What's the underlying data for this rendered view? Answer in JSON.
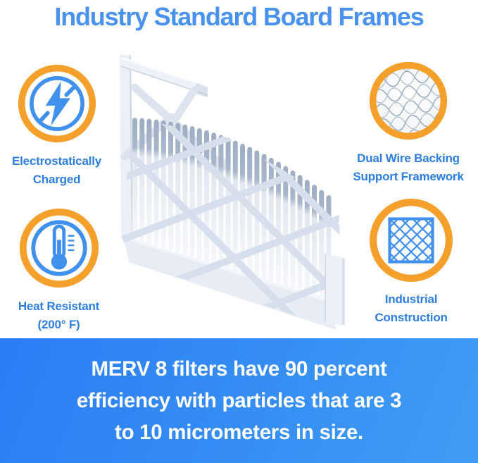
{
  "title": "Industry Standard Board Frames",
  "colors": {
    "title_blue": "#4a92f0",
    "label_blue": "#2e7ee2",
    "icon_blue": "#4090ee",
    "ring_orange": "#f6a02c",
    "banner_start": "#2b7df6",
    "banner_end": "#3f9cf3",
    "banner_text": "#ffffff"
  },
  "features": [
    {
      "id": "electrostatically-charged",
      "icon": "lightning-bolt-icon",
      "line1": "Electrostatically",
      "line2": "Charged"
    },
    {
      "id": "dual-wire-backing",
      "icon": "wire-mesh-icon",
      "line1": "Dual Wire Backing",
      "line2": "Support Framework"
    },
    {
      "id": "heat-resistant",
      "icon": "thermometer-icon",
      "line1": "Heat Resistant",
      "line2": "(200° F)"
    },
    {
      "id": "industrial-construction",
      "icon": "lattice-grid-icon",
      "line1": "Industrial",
      "line2": "Construction"
    }
  ],
  "product_image": {
    "alt": "Pleated air filter with industry standard board frame"
  },
  "banner": {
    "lines": [
      "MERV 8 filters have 90 percent",
      "efficiency with particles that are 3",
      "to 10 micrometers in size."
    ]
  }
}
